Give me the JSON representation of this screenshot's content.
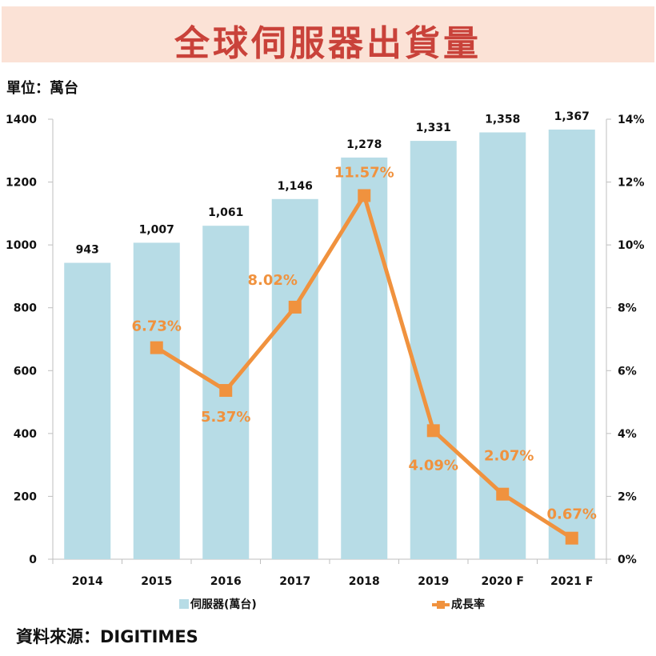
{
  "header": {
    "title": "全球伺服器出貨量"
  },
  "unit_label": "單位：萬台",
  "source_label": "資料來源：DIGITIMES",
  "colors": {
    "bar": "#b7dce6",
    "line": "#f0923e",
    "title": "#c9423a",
    "banner": "#fbe2d6"
  },
  "chart_data": {
    "type": "bar",
    "title": "全球伺服器出貨量",
    "categories": [
      "2014",
      "2015",
      "2016",
      "2017",
      "2018",
      "2019",
      "2020 F",
      "2021 F"
    ],
    "series": [
      {
        "name": "伺服器(萬台)",
        "type": "bar",
        "axis": "left",
        "values": [
          943,
          1007,
          1061,
          1146,
          1278,
          1331,
          1358,
          1367
        ],
        "labels": [
          "943",
          "1,007",
          "1,061",
          "1,146",
          "1,278",
          "1,331",
          "1,358",
          "1,367"
        ]
      },
      {
        "name": "成長率",
        "type": "line",
        "axis": "right",
        "values": [
          null,
          6.73,
          5.37,
          8.02,
          11.57,
          4.09,
          2.07,
          0.67
        ],
        "labels": [
          null,
          "6.73%",
          "5.37%",
          "8.02%",
          "11.57%",
          "4.09%",
          "2.07%",
          "0.67%"
        ]
      }
    ],
    "y_left": {
      "ylim": [
        0,
        1400
      ],
      "ticks": [
        "0",
        "200",
        "400",
        "600",
        "800",
        "1000",
        "1200",
        "1400"
      ]
    },
    "y_right": {
      "ylim": [
        0,
        14
      ],
      "ticks": [
        "0%",
        "2%",
        "4%",
        "6%",
        "8%",
        "10%",
        "12%",
        "14%"
      ]
    },
    "grid": false,
    "legend_position": "bottom"
  }
}
